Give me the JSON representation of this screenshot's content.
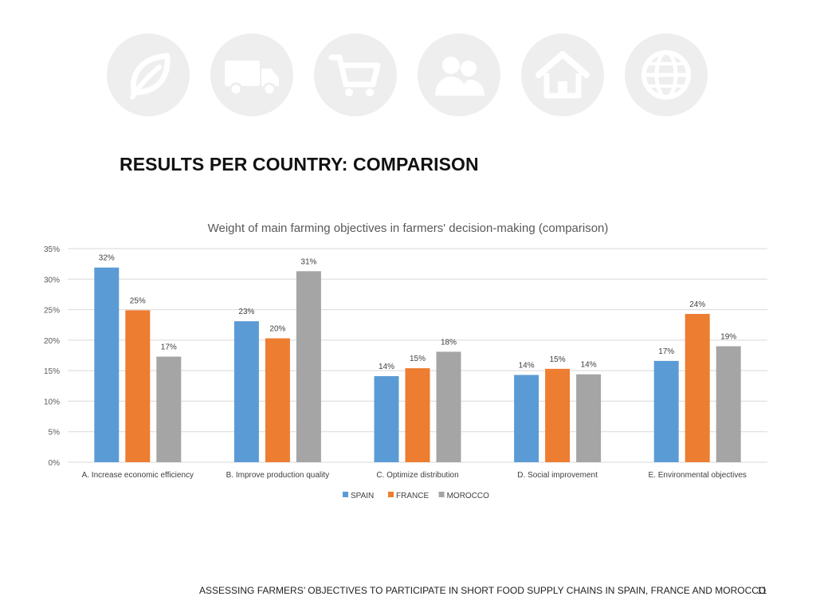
{
  "icons": [
    {
      "name": "leaf-icon"
    },
    {
      "name": "truck-icon"
    },
    {
      "name": "shopping-cart-icon"
    },
    {
      "name": "people-icon"
    },
    {
      "name": "home-icon"
    },
    {
      "name": "globe-icon"
    }
  ],
  "slide": {
    "title": "RESULTS PER COUNTRY: COMPARISON"
  },
  "footer": {
    "text": "ASSESSING FARMERS’ OBJECTIVES TO PARTICIPATE IN SHORT FOOD SUPPLY CHAINS IN SPAIN, FRANCE AND MOROCCO",
    "page_number": "11"
  },
  "chart_data": {
    "type": "bar",
    "title": "Weight of main farming objectives in farmers' decision-making (comparison)",
    "xlabel": "",
    "ylabel": "",
    "ylim": [
      0,
      35
    ],
    "yticks": [
      "0%",
      "5%",
      "10%",
      "15%",
      "20%",
      "25%",
      "30%",
      "35%"
    ],
    "grid": true,
    "legend_position": "bottom",
    "categories": [
      "A. Increase economic efficiency",
      "B. Improve production quality",
      "C. Optimize distribution",
      "D. Social improvement",
      "E. Environmental objectives"
    ],
    "series": [
      {
        "name": "SPAIN",
        "color": "#5b9bd5",
        "values": [
          31.9,
          23.1,
          14.1,
          14.3,
          16.6
        ],
        "labels": [
          "32%",
          "23%",
          "14%",
          "14%",
          "17%"
        ]
      },
      {
        "name": "FRANCE",
        "color": "#ed7d31",
        "values": [
          24.9,
          20.3,
          15.4,
          15.3,
          24.3
        ],
        "labels": [
          "25%",
          "20%",
          "15%",
          "15%",
          "24%"
        ]
      },
      {
        "name": "MOROCCO",
        "color": "#a5a5a5",
        "values": [
          17.3,
          31.3,
          18.1,
          14.4,
          19.0
        ],
        "labels": [
          "17%",
          "31%",
          "18%",
          "14%",
          "19%"
        ]
      }
    ]
  }
}
